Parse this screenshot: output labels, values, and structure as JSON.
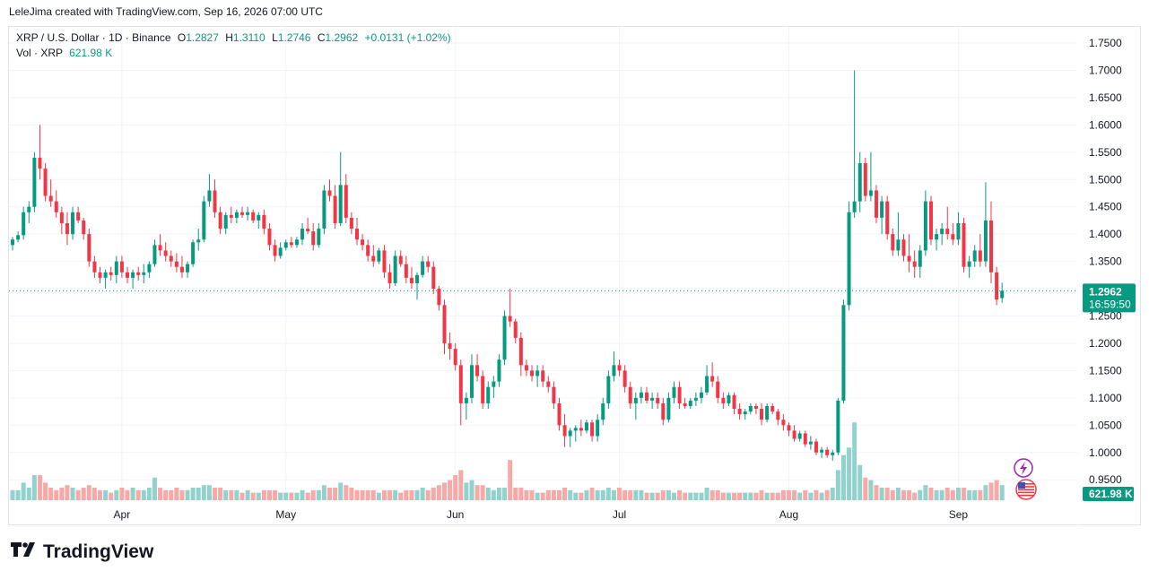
{
  "header": {
    "attribution": "LeleJima created with TradingView.com, Sep 16, 2026 07:00 UTC"
  },
  "legend": {
    "symbol": "XRP / U.S. Dollar · 1D · Binance",
    "o_label": "O",
    "o": "1.2827",
    "h_label": "H",
    "h": "1.3110",
    "l_label": "L",
    "l": "1.2746",
    "c_label": "C",
    "c": "1.2962",
    "change": "+0.0131 (+1.02%)",
    "vol_label": "Vol · XRP",
    "vol": "621.98 K"
  },
  "price_badge": {
    "price": "1.2962",
    "countdown": "16:59:50"
  },
  "volume_badge": "621.98 K",
  "footer": {
    "brand": "TradingView"
  },
  "colors": {
    "up": "#089981",
    "down": "#f23645",
    "up_vol": "#92d2cc",
    "down_vol": "#f7a9a7"
  },
  "chart_data": {
    "type": "candlestick",
    "title": "XRP / U.S. Dollar · 1D · Binance",
    "ylim": [
      0.935,
      1.765
    ],
    "y_ticks": [
      "1.7500",
      "1.7000",
      "1.6500",
      "1.6000",
      "1.5500",
      "1.5000",
      "1.4500",
      "1.4000",
      "1.3500",
      "1.3000",
      "1.2500",
      "1.2000",
      "1.1500",
      "1.1000",
      "1.0500",
      "1.0000",
      "0.9500"
    ],
    "x_ticks": [
      {
        "index": 20,
        "label": "Apr"
      },
      {
        "index": 50,
        "label": "May"
      },
      {
        "index": 81,
        "label": "Jun"
      },
      {
        "index": 111,
        "label": "Jul"
      },
      {
        "index": 142,
        "label": "Aug"
      },
      {
        "index": 173,
        "label": "Sep"
      }
    ],
    "last_price": 1.2962,
    "candles": [
      [
        1.38,
        1.395,
        1.37,
        1.39,
        0.4
      ],
      [
        1.39,
        1.405,
        1.385,
        1.398,
        0.4
      ],
      [
        1.398,
        1.45,
        1.39,
        1.44,
        0.7
      ],
      [
        1.44,
        1.46,
        1.42,
        1.45,
        0.5
      ],
      [
        1.45,
        1.55,
        1.44,
        1.54,
        1.0
      ],
      [
        1.54,
        1.6,
        1.5,
        1.52,
        1.0
      ],
      [
        1.52,
        1.53,
        1.46,
        1.47,
        0.7
      ],
      [
        1.47,
        1.5,
        1.45,
        1.46,
        0.5
      ],
      [
        1.46,
        1.48,
        1.43,
        1.44,
        0.4
      ],
      [
        1.44,
        1.45,
        1.4,
        1.42,
        0.5
      ],
      [
        1.42,
        1.44,
        1.38,
        1.4,
        0.6
      ],
      [
        1.4,
        1.45,
        1.39,
        1.44,
        0.5
      ],
      [
        1.44,
        1.45,
        1.42,
        1.425,
        0.4
      ],
      [
        1.425,
        1.43,
        1.39,
        1.4,
        0.5
      ],
      [
        1.4,
        1.41,
        1.34,
        1.35,
        0.6
      ],
      [
        1.35,
        1.36,
        1.32,
        1.33,
        0.5
      ],
      [
        1.33,
        1.34,
        1.31,
        1.32,
        0.4
      ],
      [
        1.32,
        1.335,
        1.3,
        1.33,
        0.4
      ],
      [
        1.33,
        1.34,
        1.315,
        1.325,
        0.3
      ],
      [
        1.325,
        1.36,
        1.31,
        1.35,
        0.4
      ],
      [
        1.35,
        1.36,
        1.32,
        1.33,
        0.5
      ],
      [
        1.33,
        1.34,
        1.31,
        1.32,
        0.4
      ],
      [
        1.32,
        1.335,
        1.3,
        1.33,
        0.5
      ],
      [
        1.33,
        1.34,
        1.315,
        1.325,
        0.4
      ],
      [
        1.325,
        1.345,
        1.31,
        1.33,
        0.4
      ],
      [
        1.33,
        1.35,
        1.32,
        1.345,
        0.5
      ],
      [
        1.345,
        1.39,
        1.34,
        1.38,
        0.9
      ],
      [
        1.38,
        1.4,
        1.36,
        1.37,
        0.5
      ],
      [
        1.37,
        1.385,
        1.35,
        1.36,
        0.4
      ],
      [
        1.36,
        1.37,
        1.34,
        1.35,
        0.4
      ],
      [
        1.35,
        1.365,
        1.33,
        1.34,
        0.5
      ],
      [
        1.34,
        1.36,
        1.32,
        1.33,
        0.4
      ],
      [
        1.33,
        1.35,
        1.32,
        1.345,
        0.4
      ],
      [
        1.345,
        1.39,
        1.34,
        1.385,
        0.5
      ],
      [
        1.385,
        1.41,
        1.37,
        1.39,
        0.5
      ],
      [
        1.39,
        1.47,
        1.385,
        1.46,
        0.6
      ],
      [
        1.46,
        1.51,
        1.45,
        1.48,
        0.6
      ],
      [
        1.48,
        1.5,
        1.43,
        1.44,
        0.5
      ],
      [
        1.44,
        1.45,
        1.4,
        1.41,
        0.5
      ],
      [
        1.41,
        1.44,
        1.4,
        1.435,
        0.4
      ],
      [
        1.435,
        1.45,
        1.42,
        1.43,
        0.4
      ],
      [
        1.43,
        1.445,
        1.42,
        1.44,
        0.4
      ],
      [
        1.44,
        1.45,
        1.43,
        1.435,
        0.3
      ],
      [
        1.435,
        1.45,
        1.425,
        1.44,
        0.4
      ],
      [
        1.44,
        1.445,
        1.42,
        1.425,
        0.3
      ],
      [
        1.425,
        1.44,
        1.41,
        1.435,
        0.3
      ],
      [
        1.435,
        1.445,
        1.4,
        1.41,
        0.4
      ],
      [
        1.41,
        1.42,
        1.37,
        1.38,
        0.4
      ],
      [
        1.38,
        1.39,
        1.35,
        1.36,
        0.4
      ],
      [
        1.36,
        1.385,
        1.355,
        1.375,
        0.3
      ],
      [
        1.375,
        1.39,
        1.37,
        1.385,
        0.3
      ],
      [
        1.385,
        1.395,
        1.375,
        1.38,
        0.3
      ],
      [
        1.38,
        1.395,
        1.375,
        1.39,
        0.3
      ],
      [
        1.39,
        1.42,
        1.38,
        1.41,
        0.4
      ],
      [
        1.41,
        1.43,
        1.4,
        1.405,
        0.3
      ],
      [
        1.405,
        1.42,
        1.37,
        1.38,
        0.4
      ],
      [
        1.38,
        1.42,
        1.375,
        1.41,
        0.4
      ],
      [
        1.41,
        1.49,
        1.4,
        1.48,
        0.6
      ],
      [
        1.48,
        1.5,
        1.46,
        1.47,
        0.5
      ],
      [
        1.47,
        1.49,
        1.41,
        1.42,
        0.5
      ],
      [
        1.42,
        1.55,
        1.415,
        1.49,
        0.7
      ],
      [
        1.49,
        1.51,
        1.42,
        1.43,
        0.6
      ],
      [
        1.43,
        1.44,
        1.4,
        1.41,
        0.5
      ],
      [
        1.41,
        1.43,
        1.38,
        1.39,
        0.4
      ],
      [
        1.39,
        1.4,
        1.37,
        1.38,
        0.4
      ],
      [
        1.38,
        1.39,
        1.35,
        1.36,
        0.4
      ],
      [
        1.36,
        1.38,
        1.34,
        1.35,
        0.4
      ],
      [
        1.35,
        1.375,
        1.345,
        1.37,
        0.3
      ],
      [
        1.37,
        1.38,
        1.32,
        1.33,
        0.4
      ],
      [
        1.33,
        1.345,
        1.3,
        1.31,
        0.4
      ],
      [
        1.31,
        1.37,
        1.305,
        1.36,
        0.4
      ],
      [
        1.36,
        1.37,
        1.34,
        1.345,
        0.3
      ],
      [
        1.345,
        1.36,
        1.31,
        1.32,
        0.4
      ],
      [
        1.32,
        1.34,
        1.3,
        1.31,
        0.4
      ],
      [
        1.31,
        1.33,
        1.28,
        1.325,
        0.4
      ],
      [
        1.325,
        1.36,
        1.32,
        1.35,
        0.5
      ],
      [
        1.35,
        1.36,
        1.33,
        1.34,
        0.4
      ],
      [
        1.34,
        1.35,
        1.29,
        1.3,
        0.5
      ],
      [
        1.3,
        1.305,
        1.26,
        1.27,
        0.6
      ],
      [
        1.27,
        1.28,
        1.18,
        1.2,
        0.7
      ],
      [
        1.2,
        1.22,
        1.17,
        1.19,
        0.8
      ],
      [
        1.19,
        1.2,
        1.15,
        1.16,
        1.0
      ],
      [
        1.16,
        1.17,
        1.05,
        1.09,
        1.2
      ],
      [
        1.09,
        1.11,
        1.06,
        1.1,
        0.7
      ],
      [
        1.1,
        1.18,
        1.09,
        1.16,
        0.8
      ],
      [
        1.16,
        1.18,
        1.13,
        1.14,
        0.6
      ],
      [
        1.14,
        1.15,
        1.08,
        1.09,
        0.6
      ],
      [
        1.09,
        1.13,
        1.08,
        1.12,
        0.5
      ],
      [
        1.12,
        1.14,
        1.1,
        1.13,
        0.4
      ],
      [
        1.13,
        1.18,
        1.12,
        1.17,
        0.5
      ],
      [
        1.17,
        1.26,
        1.16,
        1.25,
        0.5
      ],
      [
        1.25,
        1.3,
        1.23,
        1.24,
        1.6
      ],
      [
        1.24,
        1.245,
        1.2,
        1.21,
        0.5
      ],
      [
        1.21,
        1.22,
        1.14,
        1.16,
        0.5
      ],
      [
        1.16,
        1.17,
        1.14,
        1.15,
        0.4
      ],
      [
        1.15,
        1.16,
        1.13,
        1.14,
        0.4
      ],
      [
        1.14,
        1.16,
        1.12,
        1.15,
        0.3
      ],
      [
        1.15,
        1.16,
        1.12,
        1.13,
        0.3
      ],
      [
        1.13,
        1.14,
        1.11,
        1.12,
        0.4
      ],
      [
        1.12,
        1.13,
        1.08,
        1.09,
        0.4
      ],
      [
        1.09,
        1.1,
        1.04,
        1.05,
        0.4
      ],
      [
        1.05,
        1.07,
        1.01,
        1.03,
        0.5
      ],
      [
        1.03,
        1.045,
        1.01,
        1.04,
        0.4
      ],
      [
        1.04,
        1.05,
        1.02,
        1.045,
        0.3
      ],
      [
        1.045,
        1.06,
        1.03,
        1.04,
        0.3
      ],
      [
        1.04,
        1.06,
        1.035,
        1.055,
        0.4
      ],
      [
        1.055,
        1.06,
        1.02,
        1.03,
        0.5
      ],
      [
        1.03,
        1.07,
        1.02,
        1.06,
        0.4
      ],
      [
        1.06,
        1.1,
        1.05,
        1.09,
        0.4
      ],
      [
        1.09,
        1.15,
        1.08,
        1.14,
        0.5
      ],
      [
        1.14,
        1.185,
        1.13,
        1.16,
        0.4
      ],
      [
        1.16,
        1.17,
        1.14,
        1.15,
        0.5
      ],
      [
        1.15,
        1.16,
        1.11,
        1.12,
        0.4
      ],
      [
        1.12,
        1.13,
        1.08,
        1.09,
        0.4
      ],
      [
        1.09,
        1.11,
        1.06,
        1.1,
        0.4
      ],
      [
        1.1,
        1.12,
        1.09,
        1.11,
        0.4
      ],
      [
        1.11,
        1.12,
        1.09,
        1.095,
        0.3
      ],
      [
        1.095,
        1.11,
        1.08,
        1.1,
        0.3
      ],
      [
        1.1,
        1.11,
        1.08,
        1.09,
        0.3
      ],
      [
        1.09,
        1.1,
        1.05,
        1.06,
        0.4
      ],
      [
        1.06,
        1.11,
        1.055,
        1.1,
        0.4
      ],
      [
        1.1,
        1.13,
        1.09,
        1.12,
        0.3
      ],
      [
        1.12,
        1.13,
        1.08,
        1.09,
        0.4
      ],
      [
        1.09,
        1.1,
        1.08,
        1.085,
        0.3
      ],
      [
        1.085,
        1.1,
        1.08,
        1.095,
        0.3
      ],
      [
        1.095,
        1.11,
        1.085,
        1.1,
        0.3
      ],
      [
        1.1,
        1.12,
        1.09,
        1.11,
        0.3
      ],
      [
        1.11,
        1.16,
        1.105,
        1.14,
        0.5
      ],
      [
        1.14,
        1.165,
        1.12,
        1.13,
        0.4
      ],
      [
        1.13,
        1.14,
        1.09,
        1.1,
        0.4
      ],
      [
        1.1,
        1.11,
        1.08,
        1.09,
        0.3
      ],
      [
        1.09,
        1.11,
        1.085,
        1.105,
        0.3
      ],
      [
        1.105,
        1.11,
        1.07,
        1.08,
        0.3
      ],
      [
        1.08,
        1.09,
        1.06,
        1.07,
        0.3
      ],
      [
        1.07,
        1.08,
        1.06,
        1.075,
        0.3
      ],
      [
        1.075,
        1.09,
        1.07,
        1.085,
        0.3
      ],
      [
        1.085,
        1.09,
        1.07,
        1.08,
        0.3
      ],
      [
        1.08,
        1.09,
        1.05,
        1.06,
        0.4
      ],
      [
        1.06,
        1.09,
        1.055,
        1.085,
        0.3
      ],
      [
        1.085,
        1.09,
        1.07,
        1.075,
        0.3
      ],
      [
        1.075,
        1.08,
        1.05,
        1.06,
        0.3
      ],
      [
        1.06,
        1.07,
        1.04,
        1.05,
        0.4
      ],
      [
        1.05,
        1.055,
        1.03,
        1.04,
        0.4
      ],
      [
        1.04,
        1.05,
        1.02,
        1.025,
        0.4
      ],
      [
        1.025,
        1.04,
        1.02,
        1.035,
        0.3
      ],
      [
        1.035,
        1.04,
        1.01,
        1.015,
        0.4
      ],
      [
        1.015,
        1.03,
        1.005,
        1.02,
        0.3
      ],
      [
        1.02,
        1.025,
        0.995,
        1.0,
        0.4
      ],
      [
        1.0,
        1.01,
        0.99,
        1.005,
        0.3
      ],
      [
        1.005,
        1.01,
        0.99,
        0.995,
        0.4
      ],
      [
        0.995,
        1.005,
        0.985,
        1.0,
        0.5
      ],
      [
        1.0,
        1.1,
        0.995,
        1.095,
        1.2
      ],
      [
        1.095,
        1.28,
        1.09,
        1.27,
        1.8
      ],
      [
        1.27,
        1.46,
        1.26,
        1.44,
        2.1
      ],
      [
        1.44,
        1.7,
        1.43,
        1.46,
        3.1
      ],
      [
        1.46,
        1.55,
        1.44,
        1.53,
        1.4
      ],
      [
        1.53,
        1.54,
        1.46,
        1.47,
        0.9
      ],
      [
        1.47,
        1.55,
        1.46,
        1.48,
        0.8
      ],
      [
        1.48,
        1.49,
        1.42,
        1.43,
        0.6
      ],
      [
        1.43,
        1.47,
        1.4,
        1.46,
        0.5
      ],
      [
        1.46,
        1.47,
        1.39,
        1.4,
        0.5
      ],
      [
        1.4,
        1.41,
        1.36,
        1.37,
        0.4
      ],
      [
        1.37,
        1.44,
        1.36,
        1.39,
        0.5
      ],
      [
        1.39,
        1.4,
        1.35,
        1.36,
        0.4
      ],
      [
        1.36,
        1.4,
        1.33,
        1.35,
        0.4
      ],
      [
        1.35,
        1.37,
        1.32,
        1.34,
        0.3
      ],
      [
        1.34,
        1.38,
        1.32,
        1.37,
        0.4
      ],
      [
        1.37,
        1.48,
        1.36,
        1.46,
        0.6
      ],
      [
        1.46,
        1.47,
        1.38,
        1.39,
        0.5
      ],
      [
        1.39,
        1.41,
        1.37,
        1.4,
        0.4
      ],
      [
        1.4,
        1.42,
        1.38,
        1.41,
        0.4
      ],
      [
        1.41,
        1.45,
        1.39,
        1.4,
        0.5
      ],
      [
        1.4,
        1.42,
        1.38,
        1.39,
        0.4
      ],
      [
        1.39,
        1.44,
        1.38,
        1.42,
        0.5
      ],
      [
        1.42,
        1.43,
        1.33,
        1.34,
        0.5
      ],
      [
        1.34,
        1.36,
        1.32,
        1.35,
        0.4
      ],
      [
        1.35,
        1.38,
        1.34,
        1.37,
        0.4
      ],
      [
        1.37,
        1.4,
        1.34,
        1.35,
        0.4
      ],
      [
        1.35,
        1.495,
        1.34,
        1.425,
        0.6
      ],
      [
        1.425,
        1.46,
        1.31,
        1.33,
        0.7
      ],
      [
        1.33,
        1.34,
        1.27,
        1.28,
        0.8
      ],
      [
        1.2827,
        1.311,
        1.2746,
        1.2962,
        0.6
      ]
    ]
  }
}
